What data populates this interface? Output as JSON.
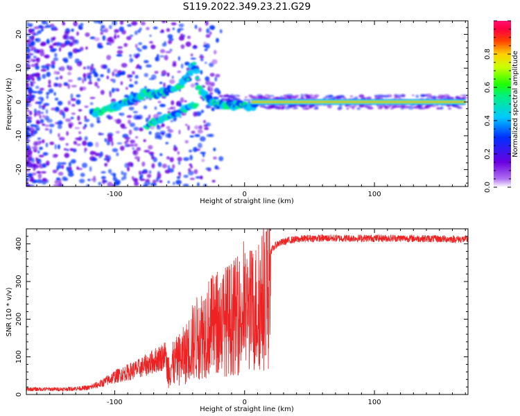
{
  "title": "S119.2022.349.23.21.G29",
  "chart_data": [
    {
      "type": "heatmap",
      "xlabel": "Height of straight line (km)",
      "ylabel": "Frequency (Hz)",
      "xlim": [
        -168,
        172
      ],
      "ylim": [
        -25,
        24
      ],
      "x_ticks": [
        -100,
        0,
        100
      ],
      "y_ticks": [
        -20,
        -10,
        0,
        10,
        20
      ],
      "colorbar": {
        "label": "Normalized spectral amplitude",
        "range": [
          0,
          1
        ],
        "ticks": [
          0.0,
          0.2,
          0.4,
          0.6,
          0.8
        ],
        "colormap": "rainbow (purple-blue-cyan-green-yellow-red-pink)"
      },
      "main_ridge": {
        "description": "",
        "points": [
          [
            -115,
            -3
          ],
          [
            -105,
            -2
          ],
          [
            -95,
            -1
          ],
          [
            -85,
            1
          ],
          [
            -75,
            3
          ],
          [
            -68,
            2
          ],
          [
            -60,
            3
          ],
          [
            -50,
            5
          ],
          [
            -42,
            8
          ],
          [
            -39,
            12
          ],
          [
            -35,
            4
          ],
          [
            -30,
            2
          ],
          [
            -25,
            0
          ],
          [
            -20,
            -1
          ],
          [
            -10,
            -1
          ],
          [
            0,
            -1
          ],
          [
            5,
            -1.5
          ],
          [
            10,
            0
          ],
          [
            170,
            0
          ]
        ],
        "strong_band_x": [
          5,
          170
        ],
        "strong_band_freq": 0
      },
      "secondary_ridge": {
        "points": [
          [
            -75,
            -7
          ],
          [
            -65,
            -5
          ],
          [
            -55,
            -4
          ],
          [
            -45,
            -2
          ],
          [
            -38,
            -1
          ]
        ]
      }
    },
    {
      "type": "line",
      "xlabel": "Height of straight line (km)",
      "ylabel": "SNR (10 * v/v)",
      "xlim": [
        -168,
        172
      ],
      "ylim": [
        0,
        440
      ],
      "x_ticks": [
        -100,
        0,
        100
      ],
      "y_ticks": [
        0,
        100,
        200,
        300,
        400
      ],
      "series": [
        {
          "color": "#ee2222",
          "envelope": [
            [
              -168,
              12
            ],
            [
              -140,
              12
            ],
            [
              -120,
              15
            ],
            [
              -110,
              25
            ],
            [
              -100,
              40
            ],
            [
              -80,
              60
            ],
            [
              -60,
              90
            ],
            [
              -45,
              150
            ],
            [
              -40,
              190
            ],
            [
              -30,
              240
            ],
            [
              -20,
              260
            ],
            [
              -10,
              280
            ],
            [
              0,
              300
            ],
            [
              10,
              320
            ],
            [
              15,
              350
            ],
            [
              20,
              380
            ],
            [
              25,
              400
            ],
            [
              35,
              410
            ],
            [
              50,
              415
            ],
            [
              80,
              415
            ],
            [
              120,
              415
            ],
            [
              172,
              412
            ]
          ]
        }
      ]
    }
  ]
}
